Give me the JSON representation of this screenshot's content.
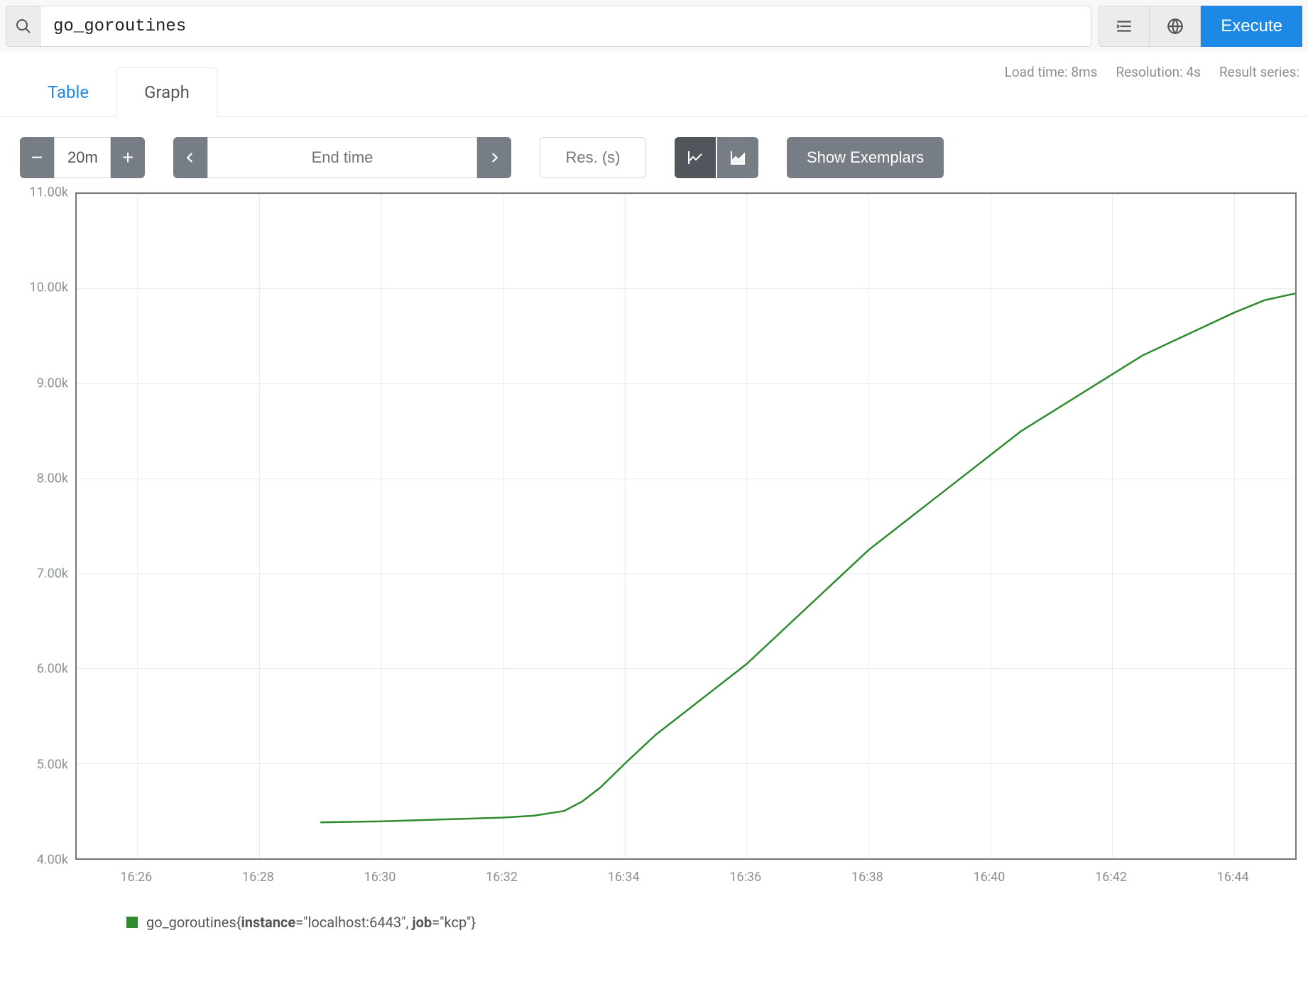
{
  "query": {
    "value": "go_goroutines",
    "execute_label": "Execute"
  },
  "toolbar_icons": {
    "format": "format-icon",
    "globe": "globe-icon"
  },
  "meta": {
    "load_time": "Load time: 8ms",
    "resolution": "Resolution: 4s",
    "result_series": "Result series:"
  },
  "tabs": {
    "table": "Table",
    "graph": "Graph",
    "active": "graph"
  },
  "controls": {
    "range": "20m",
    "endtime_placeholder": "End time",
    "res_placeholder": "Res. (s)",
    "exemplars_label": "Show Exemplars"
  },
  "chart": {
    "type": "line",
    "line_color": "#2e8b2e",
    "line_width": 2.5,
    "background_color": "#ffffff",
    "grid_color": "#e9e9e9",
    "axis_color": "#777777",
    "tick_font_size": 18,
    "tick_color": "#8a8f94",
    "y": {
      "min": 4000,
      "max": 11000,
      "tick_vals": [
        4000,
        5000,
        6000,
        7000,
        8000,
        9000,
        10000,
        11000
      ],
      "tick_labels": [
        "4.00k",
        "5.00k",
        "6.00k",
        "7.00k",
        "8.00k",
        "9.00k",
        "10.00k",
        "11.00k"
      ]
    },
    "x": {
      "min": 985,
      "max": 1005,
      "tick_vals": [
        986,
        988,
        990,
        992,
        994,
        996,
        998,
        1000,
        1002,
        1004
      ],
      "tick_labels": [
        "16:26",
        "16:28",
        "16:30",
        "16:32",
        "16:34",
        "16:36",
        "16:38",
        "16:40",
        "16:42",
        "16:44"
      ]
    },
    "series": [
      {
        "metric": "go_goroutines",
        "labels": [
          {
            "key": "instance",
            "val": "localhost:6443"
          },
          {
            "key": "job",
            "val": "kcp"
          }
        ],
        "points": [
          [
            989.0,
            4380
          ],
          [
            989.5,
            4385
          ],
          [
            990.0,
            4390
          ],
          [
            990.5,
            4400
          ],
          [
            991.0,
            4410
          ],
          [
            991.5,
            4420
          ],
          [
            992.0,
            4430
          ],
          [
            992.5,
            4450
          ],
          [
            993.0,
            4500
          ],
          [
            993.3,
            4600
          ],
          [
            993.6,
            4750
          ],
          [
            994.0,
            5000
          ],
          [
            994.5,
            5300
          ],
          [
            995.0,
            5550
          ],
          [
            995.5,
            5800
          ],
          [
            996.0,
            6050
          ],
          [
            996.5,
            6350
          ],
          [
            997.0,
            6650
          ],
          [
            997.5,
            6950
          ],
          [
            998.0,
            7250
          ],
          [
            998.5,
            7500
          ],
          [
            999.0,
            7750
          ],
          [
            999.5,
            8000
          ],
          [
            1000.0,
            8250
          ],
          [
            1000.5,
            8500
          ],
          [
            1001.0,
            8700
          ],
          [
            1001.5,
            8900
          ],
          [
            1002.0,
            9100
          ],
          [
            1002.5,
            9300
          ],
          [
            1003.0,
            9450
          ],
          [
            1003.5,
            9600
          ],
          [
            1004.0,
            9750
          ],
          [
            1004.5,
            9880
          ],
          [
            1005.0,
            9950
          ]
        ]
      }
    ]
  },
  "legend": {
    "swatch_color": "#2e8b2e"
  }
}
